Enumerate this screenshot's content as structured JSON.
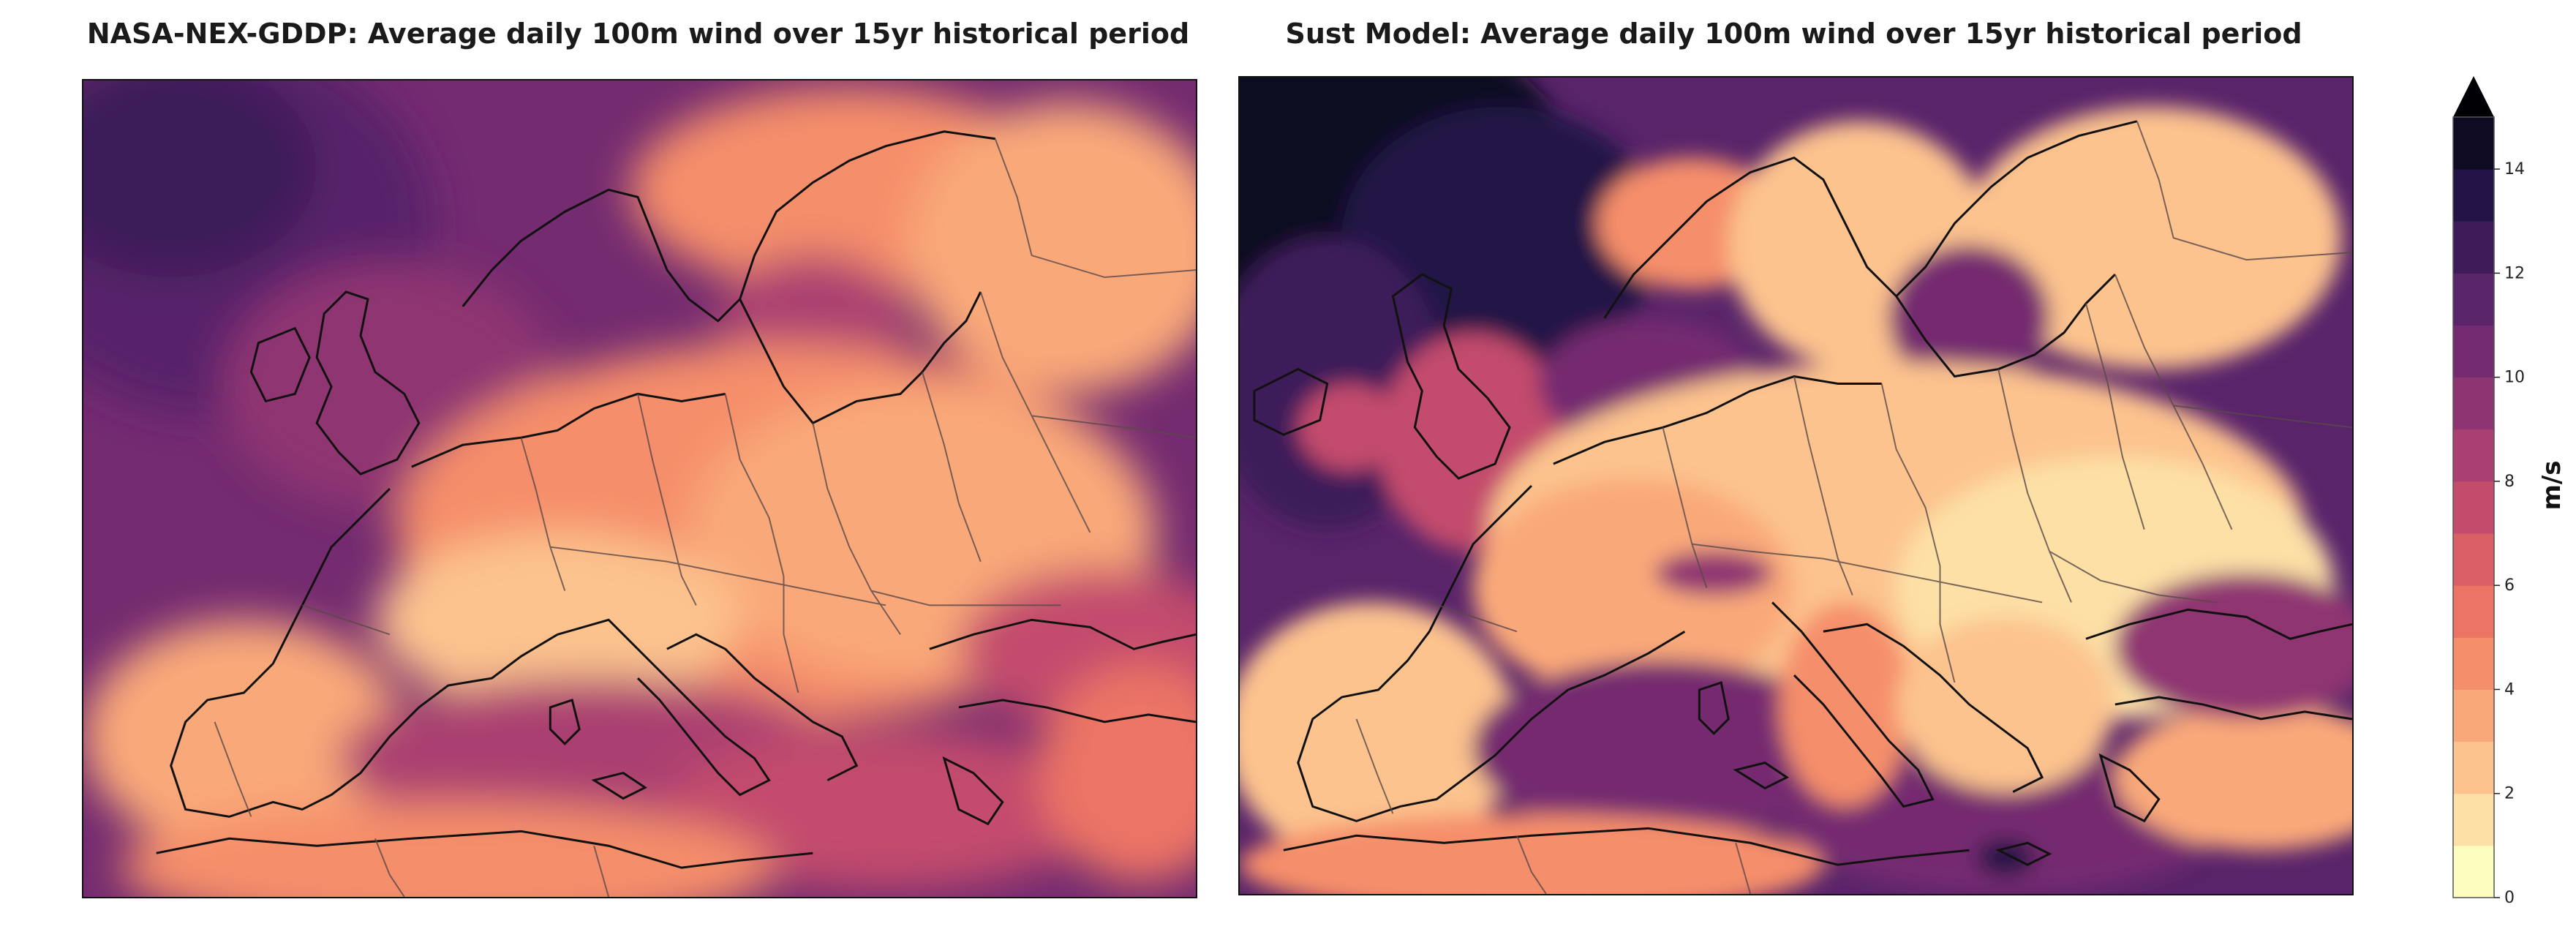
{
  "panels": [
    {
      "title": "NASA-NEX-GDDP: Average daily 100m wind over 15yr historical period",
      "map_name": "Europe"
    },
    {
      "title": "Sust Model: Average daily 100m wind over 15yr historical period",
      "map_name": "Europe"
    }
  ],
  "colorbar": {
    "unit": "m/s",
    "min": 0,
    "max": 15,
    "extend": "max",
    "ticks": [
      "0",
      "2",
      "4",
      "6",
      "8",
      "10",
      "12",
      "14"
    ],
    "tick_values": [
      0,
      2,
      4,
      6,
      8,
      10,
      12,
      14
    ],
    "levels": [
      0,
      1,
      2,
      3,
      4,
      5,
      6,
      7,
      8,
      9,
      10,
      11,
      12,
      13,
      14,
      15
    ],
    "colors": [
      "#fcfdbf",
      "#fde0a6",
      "#fcc38e",
      "#f9a979",
      "#f58e6b",
      "#ec7465",
      "#da5e66",
      "#c34c6d",
      "#aa3f71",
      "#8f3472",
      "#742b70",
      "#59246a",
      "#3e1c5a",
      "#241446",
      "#0f0b22"
    ],
    "extend_color": "#000004"
  },
  "colors": {
    "coast": "#111111",
    "border": "#4a3a3a",
    "frame": "#111111"
  }
}
